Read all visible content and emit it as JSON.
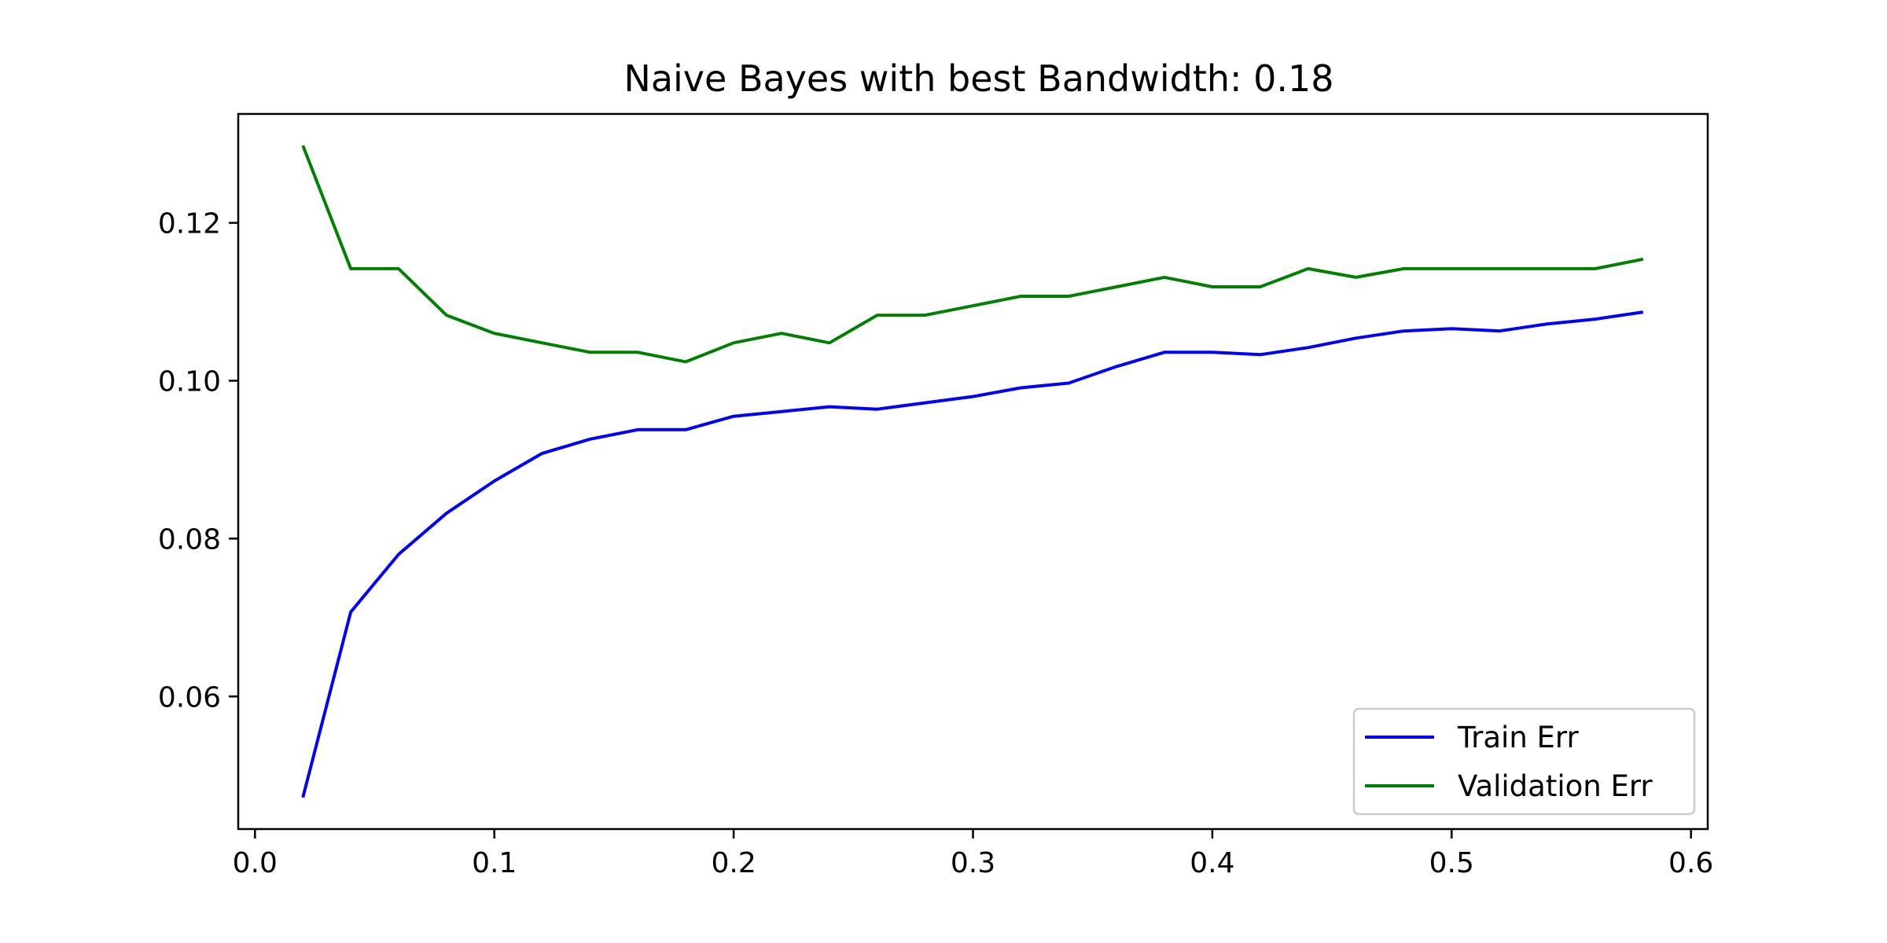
{
  "chart_data": {
    "type": "line",
    "title": "Naive Bayes with best Bandwidth: 0.18",
    "xlabel": "",
    "ylabel": "",
    "xlim": [
      -0.007,
      0.607
    ],
    "ylim": [
      0.0432,
      0.1338
    ],
    "xticks": [
      {
        "value": 0.0,
        "label": "0.0"
      },
      {
        "value": 0.1,
        "label": "0.1"
      },
      {
        "value": 0.2,
        "label": "0.2"
      },
      {
        "value": 0.3,
        "label": "0.3"
      },
      {
        "value": 0.4,
        "label": "0.4"
      },
      {
        "value": 0.5,
        "label": "0.5"
      },
      {
        "value": 0.6,
        "label": "0.6"
      }
    ],
    "yticks": [
      {
        "value": 0.06,
        "label": "0.06"
      },
      {
        "value": 0.08,
        "label": "0.08"
      },
      {
        "value": 0.1,
        "label": "0.10"
      },
      {
        "value": 0.12,
        "label": "0.12"
      }
    ],
    "grid": false,
    "legend_position": "lower-right",
    "x": [
      0.02,
      0.04,
      0.06,
      0.08,
      0.1,
      0.12,
      0.14,
      0.16,
      0.18,
      0.2,
      0.22,
      0.24,
      0.26,
      0.28,
      0.3,
      0.32,
      0.34,
      0.36,
      0.38,
      0.4,
      0.42,
      0.44,
      0.46,
      0.48,
      0.5,
      0.52,
      0.54,
      0.56,
      0.58
    ],
    "series": [
      {
        "name": "Train Err",
        "color": "#0000ff",
        "values": [
          0.0472,
          0.0707,
          0.078,
          0.0832,
          0.0873,
          0.0908,
          0.0926,
          0.0938,
          0.0938,
          0.0955,
          0.0961,
          0.0967,
          0.0964,
          0.0972,
          0.098,
          0.0991,
          0.0997,
          0.1018,
          0.1036,
          0.1036,
          0.1033,
          0.1042,
          0.1054,
          0.1063,
          0.1066,
          0.1063,
          0.1072,
          0.1078,
          0.1087
        ]
      },
      {
        "name": "Validation Err",
        "color": "#008000",
        "values": [
          0.1298,
          0.1142,
          0.1142,
          0.1083,
          0.106,
          0.1048,
          0.1036,
          0.1036,
          0.1024,
          0.1048,
          0.106,
          0.1048,
          0.1083,
          0.1083,
          0.1095,
          0.1107,
          0.1107,
          0.1119,
          0.1131,
          0.1119,
          0.1119,
          0.1142,
          0.1131,
          0.1142,
          0.1142,
          0.1142,
          0.1142,
          0.1142,
          0.1154
        ]
      }
    ]
  }
}
